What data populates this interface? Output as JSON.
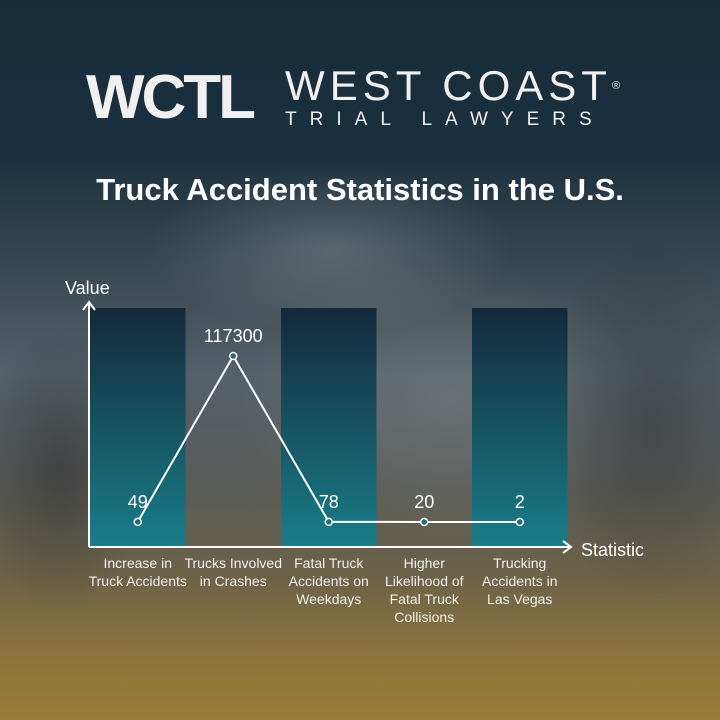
{
  "logo": {
    "mark": "WCTL",
    "line1": "WEST COAST",
    "line2": "TRIAL LAWYERS",
    "registered": "®"
  },
  "title": "Truck Accident Statistics in the U.S.",
  "chart_data": {
    "type": "line",
    "title": "Truck Accident Statistics in the U.S.",
    "xlabel": "Statistic",
    "ylabel": "Value",
    "categories": [
      "Increase in Truck Accidents",
      "Trucks Involved in Crashes",
      "Fatal Truck Accidents on Weekdays",
      "Higher Likelihood of Fatal Truck Collisions",
      "Trucking Accidents in Las Vegas"
    ],
    "values": [
      49,
      117300,
      78,
      20,
      2
    ],
    "value_labels": [
      "49",
      "117300",
      "78",
      "20",
      "2"
    ],
    "grid": false,
    "colors": {
      "line": "#ffffff",
      "band_top": "#14293a",
      "band_bottom": "#1a7d8a"
    }
  }
}
